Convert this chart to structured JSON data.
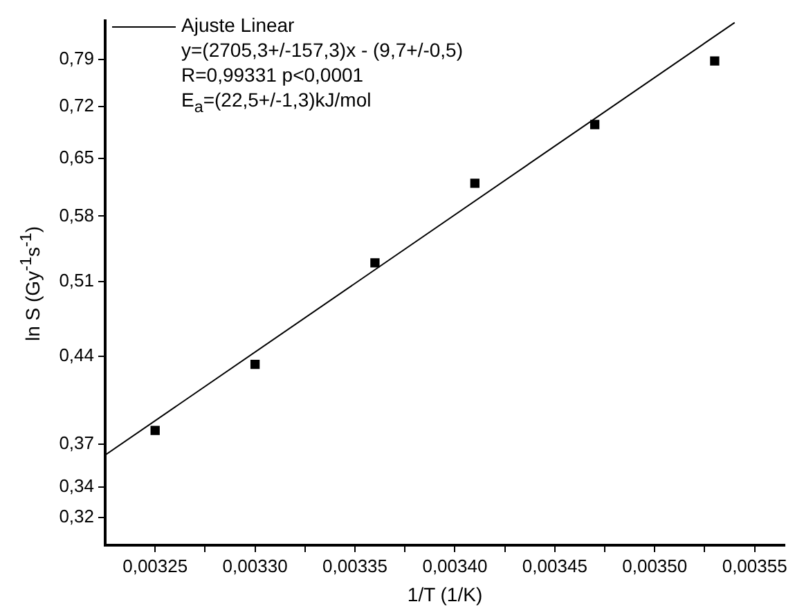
{
  "chart_data": {
    "type": "scatter",
    "xlabel": "1/T (1/K)",
    "ylabel": "ln S (Gy$^{-1}$s$^{-1}$)",
    "log": "y",
    "legend": "top left",
    "x": [
      0.00325,
      0.0033,
      0.00336,
      0.00341,
      0.00347,
      0.00353
    ],
    "series": [
      {
        "color": "#000000",
        "marker": "square",
        "values": [
          0.38,
          0.433,
          0.529,
          0.619,
          0.695,
          0.788
        ]
      },
      {
        "name": "Ajuste Linear",
        "type": "line",
        "marker": "none",
        "color": "#000000",
        "x": [
          0.003225,
          0.00354
        ],
        "values": [
          0.362,
          0.85
        ]
      }
    ],
    "annotations": [
      "y=(2705,3+/-157,3)x - (9,7+/-0,5)",
      "R=0,99331 p<0,0001",
      "E$_{a}$=(22,5+/-1,3)kJ/mol"
    ],
    "xlim": [
      0.003225,
      0.003565
    ],
    "xticks": [
      {
        "value": 0.00325,
        "label": "0,00325"
      },
      {
        "value": 0.003275,
        "label": null
      },
      {
        "value": 0.0033,
        "label": "0,00330"
      },
      {
        "value": 0.003325,
        "label": null
      },
      {
        "value": 0.00335,
        "label": "0,00335"
      },
      {
        "value": 0.003375,
        "label": null
      },
      {
        "value": 0.0034,
        "label": "0,00340"
      },
      {
        "value": 0.003425,
        "label": null
      },
      {
        "value": 0.00345,
        "label": "0,00345"
      },
      {
        "value": 0.003475,
        "label": null
      },
      {
        "value": 0.0035,
        "label": "0,00350"
      },
      {
        "value": 0.003525,
        "label": null
      },
      {
        "value": 0.00355,
        "label": "0,00355"
      }
    ],
    "ylim": [
      0.303,
      0.853
    ],
    "yticks": [
      {
        "value": 0.32,
        "label": "0,32"
      },
      {
        "value": 0.34,
        "label": "0,34"
      },
      {
        "value": 0.37,
        "label": "0,37"
      },
      {
        "value": 0.44,
        "label": "0,44"
      },
      {
        "value": 0.51,
        "label": "0,51"
      },
      {
        "value": 0.58,
        "label": "0,58"
      },
      {
        "value": 0.65,
        "label": "0,65"
      },
      {
        "value": 0.72,
        "label": "0,72"
      },
      {
        "value": 0.79,
        "label": "0,79"
      }
    ]
  }
}
